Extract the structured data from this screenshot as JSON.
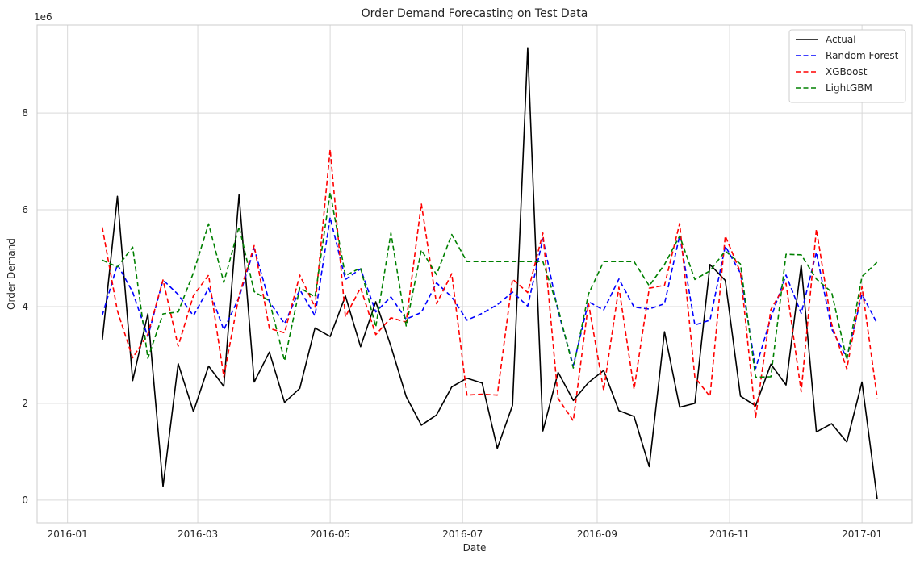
{
  "chart_data": {
    "type": "line",
    "title": "Order Demand Forecasting on Test Data",
    "xlabel": "Date",
    "ylabel": "Order Demand",
    "y_scale_label": "1e6",
    "x_ticks": [
      {
        "date": "2016-01-01",
        "label": "2016-01"
      },
      {
        "date": "2016-03-01",
        "label": "2016-03"
      },
      {
        "date": "2016-05-01",
        "label": "2016-05"
      },
      {
        "date": "2016-07-01",
        "label": "2016-07"
      },
      {
        "date": "2016-09-01",
        "label": "2016-09"
      },
      {
        "date": "2016-11-01",
        "label": "2016-11"
      },
      {
        "date": "2017-01-01",
        "label": "2017-01"
      }
    ],
    "y_ticks": [
      {
        "value": 0,
        "label": "0"
      },
      {
        "value": 2000000,
        "label": "2"
      },
      {
        "value": 4000000,
        "label": "4"
      },
      {
        "value": 6000000,
        "label": "6"
      },
      {
        "value": 8000000,
        "label": "8"
      }
    ],
    "xlim": [
      "2015-12-18",
      "2017-01-24"
    ],
    "ylim": [
      -470000,
      9820000
    ],
    "grid": true,
    "legend_position": "top-right",
    "x": [
      "2016-01-17",
      "2016-01-24",
      "2016-01-31",
      "2016-02-07",
      "2016-02-14",
      "2016-02-21",
      "2016-02-28",
      "2016-03-06",
      "2016-03-13",
      "2016-03-20",
      "2016-03-27",
      "2016-04-03",
      "2016-04-10",
      "2016-04-17",
      "2016-04-24",
      "2016-05-01",
      "2016-05-08",
      "2016-05-15",
      "2016-05-22",
      "2016-05-29",
      "2016-06-05",
      "2016-06-12",
      "2016-06-19",
      "2016-06-26",
      "2016-07-03",
      "2016-07-10",
      "2016-07-17",
      "2016-07-24",
      "2016-07-31",
      "2016-08-07",
      "2016-08-14",
      "2016-08-21",
      "2016-08-28",
      "2016-09-04",
      "2016-09-11",
      "2016-09-18",
      "2016-09-25",
      "2016-10-02",
      "2016-10-09",
      "2016-10-16",
      "2016-10-23",
      "2016-10-30",
      "2016-11-06",
      "2016-11-13",
      "2016-11-20",
      "2016-11-27",
      "2016-12-04",
      "2016-12-11",
      "2016-12-18",
      "2016-12-25",
      "2017-01-01",
      "2017-01-08"
    ],
    "series": [
      {
        "name": "Actual",
        "color": "#000000",
        "dash": "solid",
        "values": [
          3300000,
          6280000,
          2470000,
          3850000,
          280000,
          2820000,
          1830000,
          2770000,
          2350000,
          6310000,
          2440000,
          3060000,
          2020000,
          2310000,
          3560000,
          3380000,
          4220000,
          3170000,
          4100000,
          3180000,
          2140000,
          1550000,
          1760000,
          2340000,
          2520000,
          2420000,
          1070000,
          1960000,
          9350000,
          1430000,
          2640000,
          2060000,
          2430000,
          2680000,
          1850000,
          1730000,
          690000,
          3480000,
          1920000,
          2000000,
          4870000,
          4540000,
          2150000,
          1950000,
          2810000,
          2380000,
          4860000,
          1410000,
          1580000,
          1200000,
          2440000,
          20000
        ]
      },
      {
        "name": "Random Forest",
        "color": "#0000ff",
        "dash": "dashed",
        "values": [
          3820000,
          4870000,
          4300000,
          3380000,
          4550000,
          4250000,
          3810000,
          4380000,
          3520000,
          4190000,
          5200000,
          4100000,
          3650000,
          4350000,
          3810000,
          5840000,
          4560000,
          4780000,
          3890000,
          4200000,
          3740000,
          3880000,
          4490000,
          4200000,
          3720000,
          3860000,
          4040000,
          4300000,
          4010000,
          5400000,
          3900000,
          2780000,
          4100000,
          3930000,
          4570000,
          3990000,
          3950000,
          4060000,
          5470000,
          3620000,
          3720000,
          5250000,
          4690000,
          2720000,
          3770000,
          4650000,
          3860000,
          5120000,
          3540000,
          2940000,
          4250000,
          3650000
        ]
      },
      {
        "name": "XGBoost",
        "color": "#ff0000",
        "dash": "dashed",
        "values": [
          5640000,
          3910000,
          2940000,
          3430000,
          4550000,
          3180000,
          4230000,
          4650000,
          2550000,
          4230000,
          5260000,
          3550000,
          3460000,
          4650000,
          3990000,
          7250000,
          3790000,
          4390000,
          3420000,
          3770000,
          3680000,
          6130000,
          4060000,
          4680000,
          2170000,
          2190000,
          2170000,
          4570000,
          4290000,
          5520000,
          2100000,
          1640000,
          4070000,
          2270000,
          4400000,
          2290000,
          4380000,
          4440000,
          5720000,
          2540000,
          2140000,
          5460000,
          4710000,
          1710000,
          3940000,
          4480000,
          2240000,
          5600000,
          3640000,
          2710000,
          4410000,
          2110000
        ]
      },
      {
        "name": "LightGBM",
        "color": "#008000",
        "dash": "dashed",
        "values": [
          4960000,
          4820000,
          5230000,
          2930000,
          3850000,
          3890000,
          4700000,
          5710000,
          4500000,
          5650000,
          4310000,
          4120000,
          2880000,
          4390000,
          4200000,
          6360000,
          4640000,
          4800000,
          3580000,
          5520000,
          3600000,
          5170000,
          4660000,
          5490000,
          4930000,
          4930000,
          4930000,
          4930000,
          4930000,
          4930000,
          3960000,
          2730000,
          4260000,
          4930000,
          4930000,
          4930000,
          4430000,
          4870000,
          5460000,
          4560000,
          4740000,
          5150000,
          4880000,
          2540000,
          2550000,
          5080000,
          5070000,
          4570000,
          4300000,
          2900000,
          4620000,
          4920000
        ]
      }
    ]
  }
}
